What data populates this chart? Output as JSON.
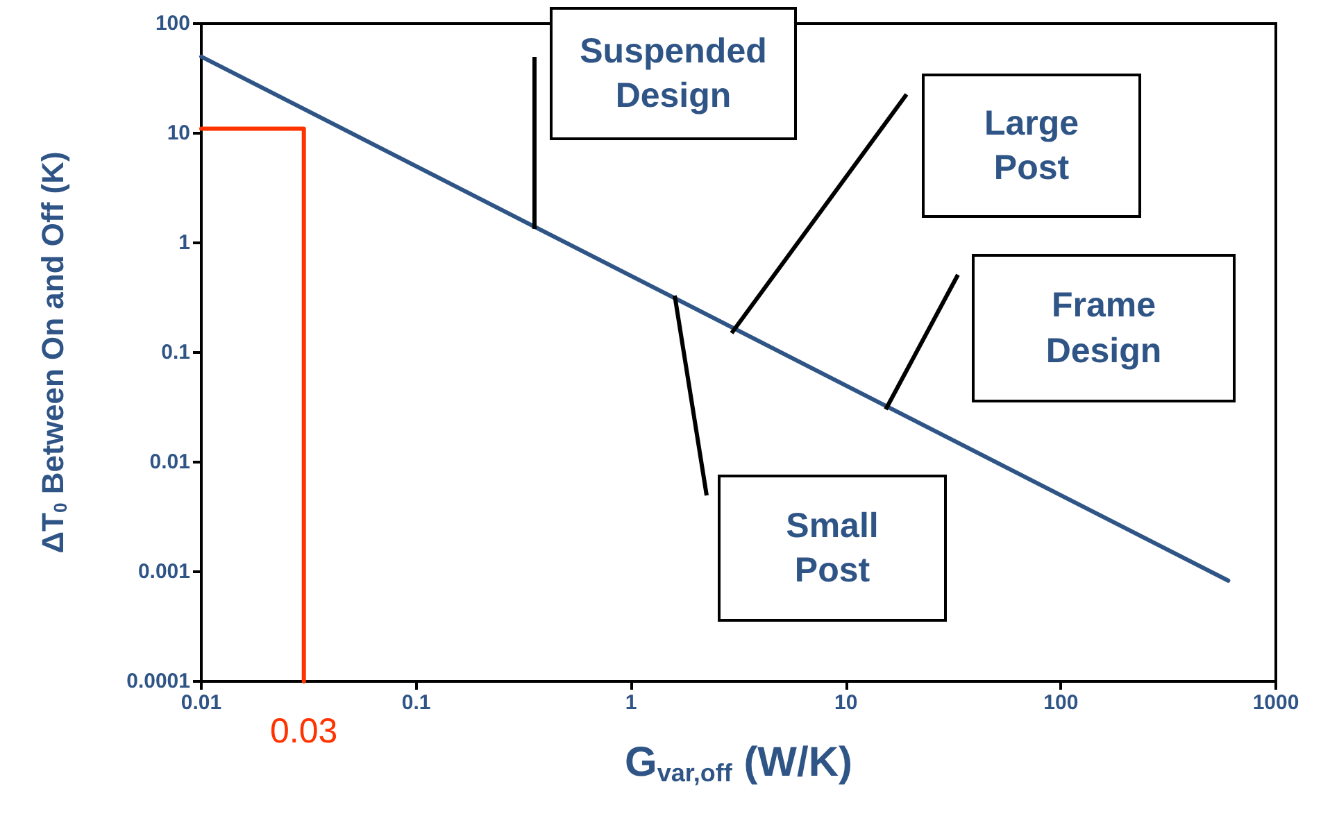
{
  "chart_data": {
    "type": "line",
    "xlabel": "G$_{var,off}$ (W/K)",
    "ylabel": "ΔT$_{0}$ Between On and Off (K)",
    "log": "xy",
    "xlim": [
      0.01,
      1000
    ],
    "ylim": [
      0.0001,
      100
    ],
    "xticks": [
      0.01,
      0.1,
      1,
      10,
      100,
      1000
    ],
    "yticks": [
      0.0001,
      0.001,
      0.01,
      0.1,
      1,
      10,
      100
    ],
    "grid": false,
    "marker": "none",
    "line_style": "solid",
    "series": [
      {
        "color": "#2f5486",
        "x": [
          0.01,
          600
        ],
        "values": [
          50,
          0.00083
        ]
      },
      {
        "color": "#ff3300",
        "x": [
          0.01,
          0.03,
          0.03
        ],
        "values": [
          11,
          11,
          0.0001
        ]
      }
    ],
    "annotations": [
      "Suspended\nDesign",
      "Large\nPost",
      "Frame\nDesign",
      "Small\nPost",
      {
        "text": "0.03",
        "x": 0.03,
        "y": 0.0001
      }
    ]
  }
}
